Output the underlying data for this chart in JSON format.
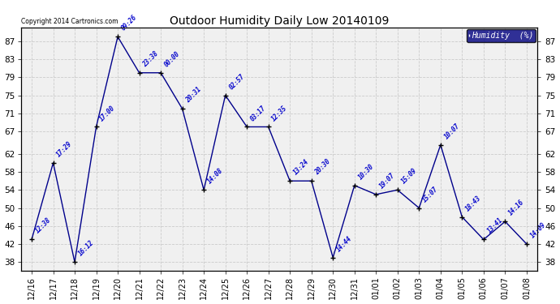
{
  "title": "Outdoor Humidity Daily Low 20140109",
  "legend_label": "Humidity  (%)",
  "copyright": "Copyright 2014 Cartronics.com",
  "background_color": "#ffffff",
  "plot_bg_color": "#f0f0f0",
  "line_color": "#00008B",
  "marker_color": "#000080",
  "text_color": "#0000cc",
  "grid_color": "#cccccc",
  "ylim": [
    36,
    90
  ],
  "yticks": [
    38,
    42,
    46,
    50,
    54,
    58,
    62,
    67,
    71,
    75,
    79,
    83,
    87
  ],
  "categories": [
    "12/16",
    "12/17",
    "12/18",
    "12/19",
    "12/20",
    "12/21",
    "12/22",
    "12/23",
    "12/24",
    "12/25",
    "12/26",
    "12/27",
    "12/28",
    "12/29",
    "12/30",
    "12/31",
    "01/01",
    "01/02",
    "01/03",
    "01/04",
    "01/05",
    "01/06",
    "01/07",
    "01/08"
  ],
  "values": [
    43,
    60,
    38,
    68,
    88,
    80,
    80,
    72,
    54,
    75,
    68,
    68,
    56,
    56,
    39,
    55,
    53,
    54,
    50,
    64,
    48,
    43,
    47,
    42
  ],
  "time_labels": [
    "12:38",
    "17:29",
    "16:12",
    "17:00",
    "09:26",
    "23:38",
    "00:00",
    "20:31",
    "14:08",
    "02:57",
    "03:17",
    "12:35",
    "13:24",
    "20:30",
    "14:44",
    "10:30",
    "19:07",
    "15:09",
    "15:07",
    "10:07",
    "18:43",
    "13:41",
    "14:16",
    "14:09"
  ],
  "legend_box_color": "#000080",
  "legend_text_color": "#ffffff",
  "figsize": [
    6.9,
    3.75
  ],
  "dpi": 100
}
